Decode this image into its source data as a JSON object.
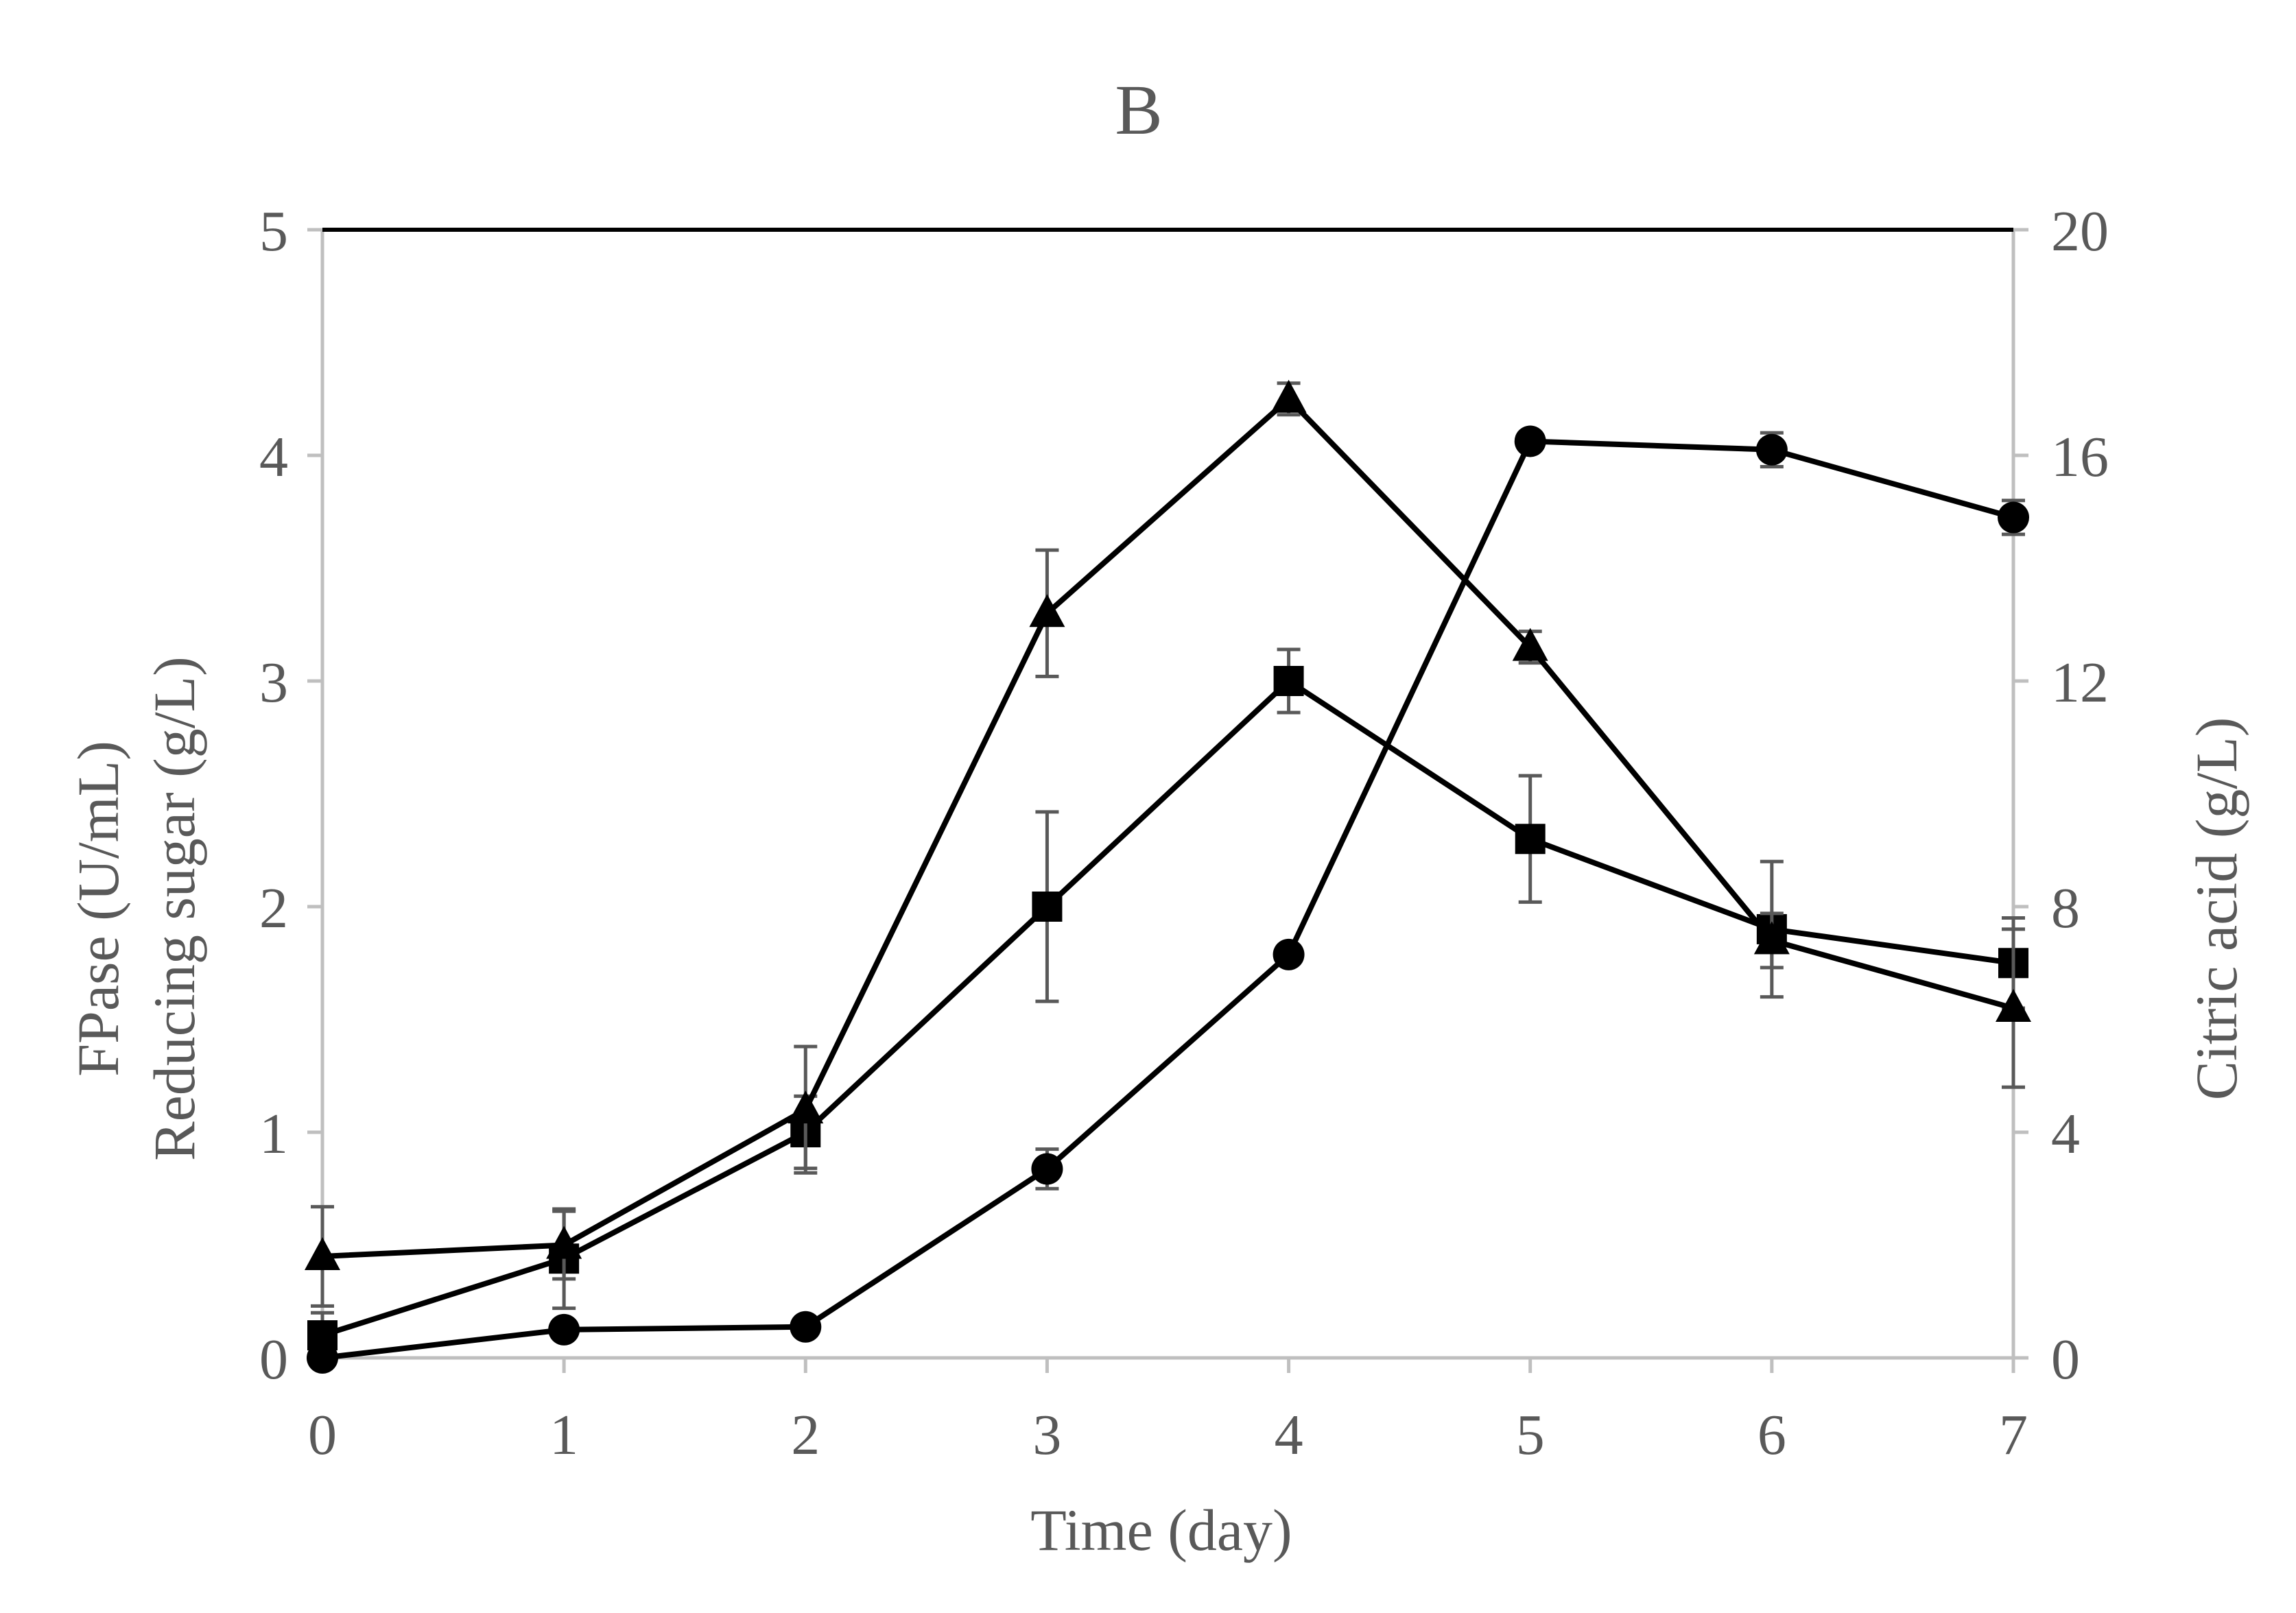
{
  "chart_data": {
    "type": "line",
    "title": "B",
    "xlabel": "Time (day)",
    "ylabel_left_lines": [
      "FPase (U/mL)",
      "Reducing sugar (g/L)"
    ],
    "ylabel_right": "Citric acid (g/L)",
    "x": [
      0,
      1,
      2,
      3,
      4,
      5,
      6,
      7
    ],
    "x_ticks": [
      "0",
      "1",
      "2",
      "3",
      "4",
      "5",
      "6",
      "7"
    ],
    "xlim": [
      0,
      7
    ],
    "ylim_left": [
      0,
      5
    ],
    "ylim_right": [
      0,
      20
    ],
    "y_ticks_left": [
      "0",
      "1",
      "2",
      "3",
      "4",
      "5"
    ],
    "y_ticks_right": [
      "0",
      "4",
      "8",
      "12",
      "16",
      "20"
    ],
    "grid": false,
    "series": [
      {
        "name": "FPase",
        "marker": "square",
        "axis": "left",
        "values": [
          0.1,
          0.44,
          1.0,
          2.0,
          3.0,
          2.3,
          1.9,
          1.75
        ],
        "errors": [
          0.1,
          0.22,
          0.16,
          0.42,
          0.14,
          0.28,
          0.3,
          0.2
        ]
      },
      {
        "name": "Reducing sugar",
        "marker": "triangle",
        "axis": "left",
        "values": [
          0.45,
          0.5,
          1.1,
          3.3,
          4.25,
          3.15,
          1.85,
          1.55
        ],
        "errors": [
          0.22,
          0.15,
          0.28,
          0.28,
          0.07,
          0.07,
          0.12,
          0.35
        ]
      },
      {
        "name": "Citric acid",
        "marker": "circle",
        "axis": "right",
        "values": [
          0.0,
          0.5,
          0.55,
          3.35,
          7.15,
          16.25,
          16.1,
          14.9
        ],
        "errors": [
          0.0,
          0.1,
          0.1,
          0.35,
          0.1,
          0.1,
          0.3,
          0.3
        ]
      }
    ],
    "colors": {
      "series": "#000000",
      "axis": "#bfbfbf",
      "error_bar": "#595959",
      "text": "#595959",
      "top_frame": "#000000"
    }
  }
}
